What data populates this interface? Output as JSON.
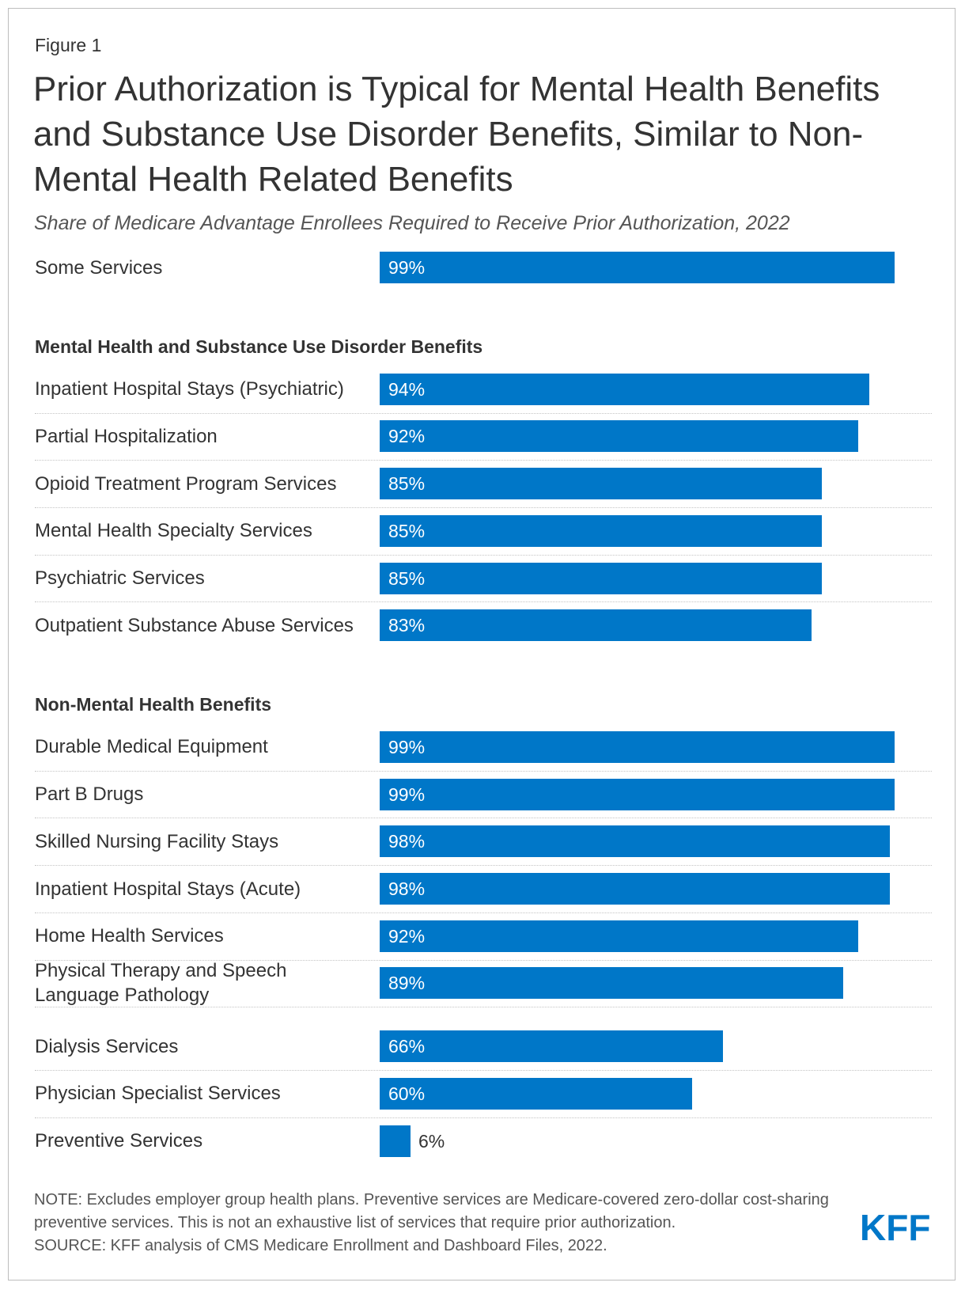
{
  "figure_label": "Figure 1",
  "title": "Prior Authorization is Typical for Mental Health Benefits and Substance Use Disorder Benefits, Similar to Non-Mental Health Related Benefits",
  "subtitle": "Share of Medicare Advantage Enrollees Required to Receive Prior Authorization, 2022",
  "colors": {
    "bar": "#0077C8",
    "logo": "#0077C8"
  },
  "chart_data": {
    "type": "bar",
    "orientation": "horizontal",
    "xlim": [
      0,
      100
    ],
    "unit": "%",
    "groups": [
      {
        "heading": "",
        "rows": [
          {
            "label": "Some Services",
            "value": 99
          }
        ]
      },
      {
        "heading": "Mental Health and Substance Use Disorder Benefits",
        "rows": [
          {
            "label": "Inpatient Hospital Stays (Psychiatric)",
            "value": 94
          },
          {
            "label": "Partial Hospitalization",
            "value": 92
          },
          {
            "label": "Opioid Treatment Program Services",
            "value": 85
          },
          {
            "label": "Mental Health Specialty Services",
            "value": 85
          },
          {
            "label": "Psychiatric Services",
            "value": 85
          },
          {
            "label": "Outpatient Substance Abuse Services",
            "value": 83
          }
        ]
      },
      {
        "heading": "Non-Mental Health Benefits",
        "rows": [
          {
            "label": "Durable Medical Equipment",
            "value": 99
          },
          {
            "label": "Part B Drugs",
            "value": 99
          },
          {
            "label": "Skilled Nursing Facility Stays",
            "value": 98
          },
          {
            "label": "Inpatient Hospital Stays (Acute)",
            "value": 98
          },
          {
            "label": "Home Health Services",
            "value": 92
          },
          {
            "label": "Physical Therapy and Speech Language Pathology",
            "value": 89
          },
          {
            "label": "Dialysis Services",
            "value": 66
          },
          {
            "label": "Physician Specialist Services",
            "value": 60
          },
          {
            "label": "Preventive Services",
            "value": 6
          }
        ]
      }
    ]
  },
  "notes": {
    "note": "NOTE: Excludes employer group health plans. Preventive services are Medicare-covered zero-dollar cost-sharing preventive services. This is not an exhaustive list of services that require prior authorization.",
    "source": "SOURCE: KFF analysis of CMS Medicare Enrollment and Dashboard Files, 2022."
  },
  "logo_text": "KFF"
}
